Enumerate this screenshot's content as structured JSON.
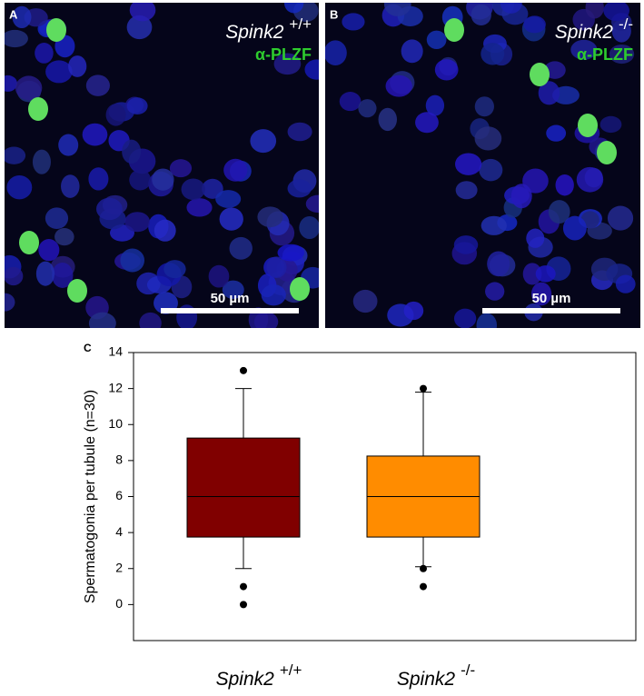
{
  "panels": [
    {
      "label": "A",
      "gene": "Spink2",
      "genotype": "+/+",
      "stain": "α-PLZF",
      "scale_bar": "50 µm"
    },
    {
      "label": "B",
      "gene": "Spink2",
      "genotype": "-/-",
      "stain": "α-PLZF",
      "scale_bar": "50 µm"
    }
  ],
  "chart_data": {
    "type": "box",
    "panel_label": "C",
    "y_label": "Spermatogonia per tubule (n=30)",
    "categories": [
      "Spink2",
      "Spink2"
    ],
    "category_superscripts": [
      "+/+",
      "-/-"
    ],
    "series": [
      {
        "color": "#800000",
        "whisker_low": 2,
        "q1": 3.75,
        "median": 6,
        "q3": 9.25,
        "whisker_high": 12,
        "outliers": [
          13,
          1,
          0
        ]
      },
      {
        "color": "#ff8c00",
        "whisker_low": 2.1,
        "q1": 3.75,
        "median": 6,
        "q3": 8.25,
        "whisker_high": 11.8,
        "outliers": [
          12,
          2,
          1
        ]
      }
    ],
    "ylim": [
      -2,
      14
    ],
    "yticks": [
      0,
      2,
      4,
      6,
      8,
      10,
      12,
      14
    ]
  }
}
